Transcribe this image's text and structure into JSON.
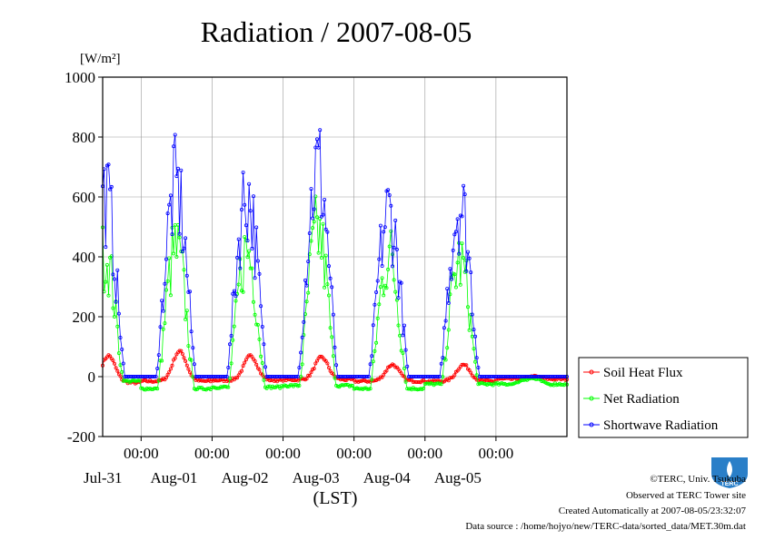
{
  "chart_data": {
    "type": "line",
    "title": "Radiation / 2007-08-05",
    "ylabel": "[W/m²]",
    "xlabel": "(LST)",
    "ylim": [
      -200,
      1000
    ],
    "yticks": [
      -200,
      0,
      200,
      400,
      600,
      800,
      1000
    ],
    "x_start": "2007-07-30T11:00",
    "x_end": "2007-08-06T00:00",
    "time_label": "00:00",
    "date_labels": [
      "Jul-31",
      "Aug-01",
      "Aug-02",
      "Aug-03",
      "Aug-04",
      "Aug-05"
    ],
    "grid": true,
    "legend_position": "right",
    "series": [
      {
        "name": "Soil Heat Flux",
        "color": "#ff0000",
        "days": [
          {
            "day": "2007-07-30",
            "night": -12,
            "peak": 70,
            "dip": -20
          },
          {
            "day": "2007-07-31",
            "night": -15,
            "peak": 85,
            "dip": -15
          },
          {
            "day": "2007-08-01",
            "night": -8,
            "peak": 70,
            "dip": -12
          },
          {
            "day": "2007-08-02",
            "night": -5,
            "peak": 65,
            "dip": -10
          },
          {
            "day": "2007-08-03",
            "night": -5,
            "peak": 40,
            "dip": -15
          },
          {
            "day": "2007-08-04",
            "night": -8,
            "peak": 40,
            "dip": -15
          },
          {
            "day": "2007-08-05",
            "night": -8,
            "peak": 0,
            "dip": -8
          }
        ]
      },
      {
        "name": "Net Radiation",
        "color": "#00ff00",
        "days": [
          {
            "day": "2007-07-30",
            "night": -15,
            "peak": 530,
            "dip": -50
          },
          {
            "day": "2007-07-31",
            "night": -40,
            "peak": 555,
            "dip": -40
          },
          {
            "day": "2007-08-01",
            "night": -35,
            "peak": 550,
            "dip": -45
          },
          {
            "day": "2007-08-02",
            "night": -30,
            "peak": 625,
            "dip": -55
          },
          {
            "day": "2007-08-03",
            "night": -40,
            "peak": 530,
            "dip": -45
          },
          {
            "day": "2007-08-04",
            "night": -25,
            "peak": 500,
            "dip": -35
          },
          {
            "day": "2007-08-05",
            "night": -25,
            "peak": 0,
            "dip": -25
          }
        ]
      },
      {
        "name": "Shortwave Radiation",
        "color": "#0000ff",
        "days": [
          {
            "day": "2007-07-30",
            "night": 0,
            "peak": 780,
            "dip": 0
          },
          {
            "day": "2007-07-31",
            "night": 0,
            "peak": 810,
            "dip": 0
          },
          {
            "day": "2007-08-01",
            "night": 0,
            "peak": 785,
            "dip": 0
          },
          {
            "day": "2007-08-02",
            "night": 0,
            "peak": 895,
            "dip": 0
          },
          {
            "day": "2007-08-03",
            "night": 0,
            "peak": 705,
            "dip": 0
          },
          {
            "day": "2007-08-04",
            "night": 0,
            "peak": 740,
            "dip": 0
          },
          {
            "day": "2007-08-05",
            "night": 0,
            "peak": 0,
            "dip": 0
          }
        ]
      }
    ]
  },
  "footer": {
    "credit": "©TERC, Univ. Tsukuba",
    "observed": "Observed at TERC Tower site",
    "created": "Created Automatically at 2007-08-05/23:32:07",
    "source": "Data source : /home/hojyo/new/TERC-data/sorted_data/MET.30m.dat"
  },
  "logo": {
    "text": "TERC",
    "color": "#2a7fc8"
  }
}
